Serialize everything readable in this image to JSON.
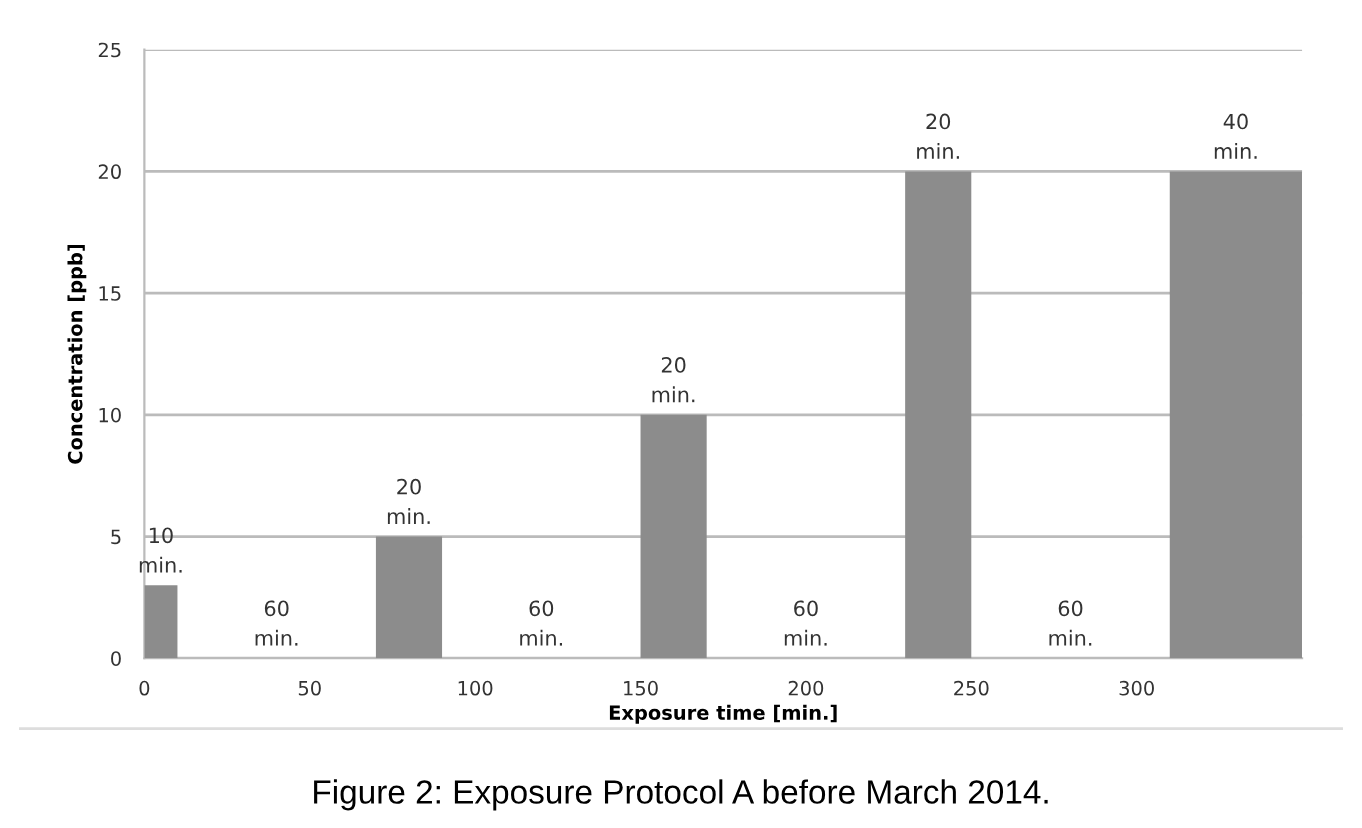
{
  "chart_data": {
    "type": "histogram",
    "xlabel": "Exposure time [min.]",
    "ylabel": "Concentration [ppb]",
    "bins": [
      0,
      10,
      70,
      90,
      150,
      170,
      230,
      250,
      310,
      350
    ],
    "values": [
      3,
      0,
      5,
      0,
      10,
      0,
      20,
      0,
      20
    ],
    "color": "#8c8c8c",
    "xlim": [
      0,
      350
    ],
    "xticks": [
      0,
      50,
      100,
      150,
      200,
      250,
      300
    ],
    "ylim": [
      0,
      25
    ],
    "yticks": [
      0,
      5,
      10,
      15,
      20,
      25
    ],
    "grid": "y",
    "annotations": [
      {
        "text": "10\nmin.",
        "x": 5,
        "y": 3
      },
      {
        "text": "60\nmin.",
        "x": 40,
        "y": 0
      },
      {
        "text": "20\nmin.",
        "x": 80,
        "y": 5
      },
      {
        "text": "60\nmin.",
        "x": 120,
        "y": 0
      },
      {
        "text": "20\nmin.",
        "x": 160,
        "y": 10
      },
      {
        "text": "60\nmin.",
        "x": 200,
        "y": 0
      },
      {
        "text": "20\nmin.",
        "x": 240,
        "y": 20
      },
      {
        "text": "60\nmin.",
        "x": 280,
        "y": 0
      },
      {
        "text": "40\nmin.",
        "x": 330,
        "y": 20
      },
      "Figure 2: Exposure Protocol A before March 2014."
    ]
  }
}
